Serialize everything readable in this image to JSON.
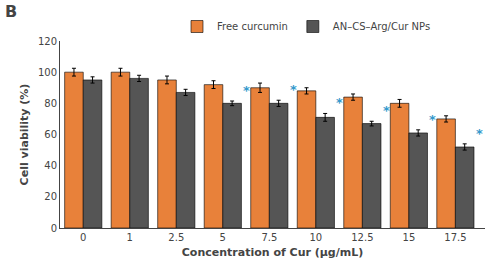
{
  "chart_data": {
    "type": "bar",
    "title": "B",
    "xlabel": "Concentration of Cur (μg/mL)",
    "ylabel": "Cell viability (%)",
    "categories": [
      "0",
      "1",
      "2.5",
      "5",
      "7.5",
      "10",
      "12.5",
      "15",
      "17.5"
    ],
    "series": [
      {
        "name": "Free curcumin",
        "color": "#E8813A",
        "values": [
          100,
          100,
          95,
          92,
          90,
          88,
          84,
          80,
          70
        ],
        "errors": [
          2.5,
          2.5,
          2.5,
          2.5,
          3,
          2,
          2,
          2.5,
          2
        ]
      },
      {
        "name": "AN–CS–Arg/Cur NPs",
        "color": "#555555",
        "values": [
          95,
          96,
          87,
          80,
          80,
          71,
          67,
          61,
          52
        ],
        "errors": [
          2,
          2,
          2,
          1.5,
          2,
          2.5,
          1.5,
          2,
          2
        ]
      }
    ],
    "annotations": [
      {
        "category": "5",
        "series": "AN–CS–Arg/Cur NPs",
        "text": "*",
        "color": "#3399CC"
      },
      {
        "category": "7.5",
        "series": "AN–CS–Arg/Cur NPs",
        "text": "*",
        "color": "#3399CC"
      },
      {
        "category": "10",
        "series": "AN–CS–Arg/Cur NPs",
        "text": "*",
        "color": "#3399CC"
      },
      {
        "category": "12.5",
        "series": "AN–CS–Arg/Cur NPs",
        "text": "*",
        "color": "#3399CC"
      },
      {
        "category": "15",
        "series": "AN–CS–Arg/Cur NPs",
        "text": "*",
        "color": "#3399CC"
      },
      {
        "category": "17.5",
        "series": "AN–CS–Arg/Cur NPs",
        "text": "*",
        "color": "#3399CC"
      }
    ],
    "ylim": [
      0,
      120
    ],
    "yticks": [
      0,
      20,
      40,
      60,
      80,
      100,
      120
    ],
    "grid": false,
    "legend": "top"
  }
}
